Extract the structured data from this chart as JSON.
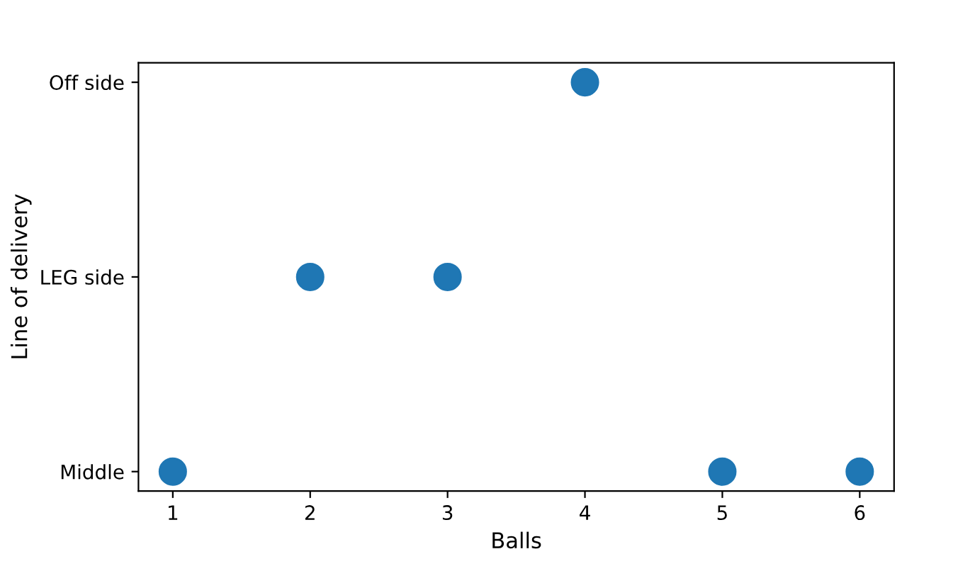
{
  "chart_data": {
    "type": "scatter",
    "orientation": "horizontal",
    "xlabel": "Balls",
    "ylabel": "Line of delivery",
    "categories": [
      "Off side",
      "LEG side",
      "Middle"
    ],
    "series": [
      {
        "color": "#1f77b4",
        "values": [
          4,
          2,
          1
        ]
      },
      {
        "color": "#1f77b4",
        "values": [
          null,
          3,
          5
        ]
      },
      {
        "color": "#1f77b4",
        "values": [
          null,
          null,
          6
        ]
      }
    ],
    "xlim": [
      0.75,
      6.25
    ],
    "xticks": [
      1,
      2,
      3,
      4,
      5,
      6
    ],
    "marker": "circle",
    "grid": false,
    "legend": false
  }
}
